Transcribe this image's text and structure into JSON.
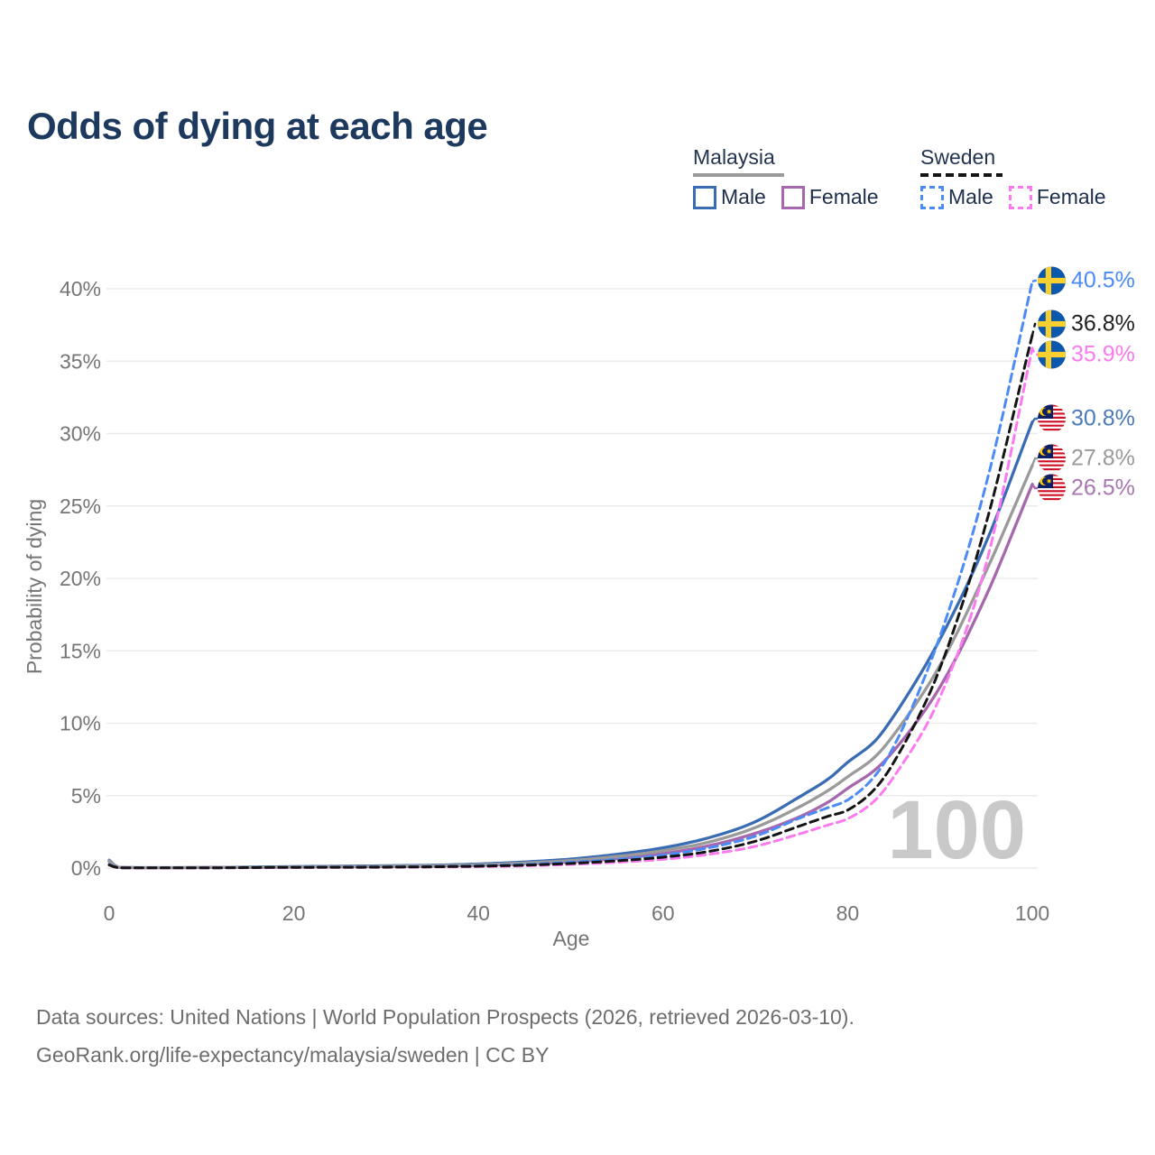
{
  "title": "Odds of dying at each age",
  "legend": {
    "groups": [
      {
        "country": "Malaysia",
        "style": "solid",
        "items": [
          {
            "label": "Male"
          },
          {
            "label": "Female"
          }
        ]
      },
      {
        "country": "Sweden",
        "style": "dashed",
        "items": [
          {
            "label": "Male"
          },
          {
            "label": "Female"
          }
        ]
      }
    ]
  },
  "footer": {
    "line1": "Data sources: United Nations | World Population Prospects (2026, retrieved 2026-03-10).",
    "line2": "GeoRank.org/life-expectancy/malaysia/sweden | CC BY"
  },
  "chart_data": {
    "type": "line",
    "title": "Odds of dying at each age",
    "xlabel": "Age",
    "ylabel": "Probability of dying",
    "xlim": [
      0,
      100
    ],
    "ylim": [
      0,
      40
    ],
    "x_ticks": [
      "0",
      "20",
      "40",
      "60",
      "80",
      "100"
    ],
    "y_ticks": [
      "0%",
      "5%",
      "10%",
      "15%",
      "20%",
      "25%",
      "30%",
      "35%",
      "40%"
    ],
    "grid": "horizontal",
    "legend_position": "top-right",
    "age_counter": "100",
    "units": "percent probability of dying at each age",
    "ages": [
      0,
      1,
      5,
      10,
      15,
      20,
      25,
      30,
      35,
      40,
      45,
      50,
      55,
      60,
      65,
      70,
      75,
      78,
      80,
      83,
      85,
      90,
      95,
      100
    ],
    "series": [
      {
        "key": "malaysia-male",
        "name": "Malaysia Male",
        "country": "Malaysia",
        "sex": "Male",
        "flag": "malaysia",
        "color": "#3a6cb4",
        "label_color": "#4a7ab9",
        "dashed": false,
        "end_value": 30.8,
        "end_label": "30.8%",
        "values": [
          0.55,
          0.05,
          0.03,
          0.04,
          0.07,
          0.1,
          0.13,
          0.16,
          0.2,
          0.28,
          0.42,
          0.62,
          0.95,
          1.4,
          2.1,
          3.2,
          5.0,
          6.2,
          7.3,
          8.8,
          10.5,
          15.8,
          22.5,
          30.8
        ]
      },
      {
        "key": "malaysia-female",
        "name": "Malaysia Female",
        "country": "Malaysia",
        "sex": "Female",
        "flag": "malaysia",
        "color": "#a667ac",
        "label_color": "#a876b1",
        "dashed": false,
        "end_value": 26.5,
        "end_label": "26.5%",
        "values": [
          0.45,
          0.04,
          0.02,
          0.03,
          0.04,
          0.06,
          0.08,
          0.1,
          0.13,
          0.19,
          0.28,
          0.43,
          0.65,
          1.0,
          1.55,
          2.4,
          3.6,
          4.6,
          5.5,
          6.8,
          8.1,
          12.5,
          18.8,
          26.5
        ]
      },
      {
        "key": "malaysia-both",
        "name": "Malaysia (both sexes)",
        "country": "Malaysia",
        "sex": "Both",
        "flag": "malaysia",
        "color": "#9a9a9a",
        "label_color": "#9a9a9a",
        "dashed": false,
        "end_value": 27.8,
        "end_label": "27.8%",
        "values": [
          0.5,
          0.045,
          0.025,
          0.035,
          0.055,
          0.08,
          0.1,
          0.13,
          0.17,
          0.23,
          0.35,
          0.52,
          0.8,
          1.2,
          1.8,
          2.8,
          4.3,
          5.4,
          6.3,
          7.7,
          9.2,
          14.0,
          20.5,
          27.8
        ]
      },
      {
        "key": "sweden-male",
        "name": "Sweden Male",
        "country": "Sweden",
        "sex": "Male",
        "flag": "sweden",
        "color": "#4c8bf5",
        "label_color": "#4c8bf5",
        "dashed": true,
        "end_value": 40.5,
        "end_label": "40.5%",
        "values": [
          0.25,
          0.02,
          0.01,
          0.015,
          0.04,
          0.06,
          0.07,
          0.08,
          0.11,
          0.16,
          0.25,
          0.4,
          0.6,
          0.9,
          1.4,
          2.2,
          3.5,
          4.2,
          4.7,
          6.4,
          8.4,
          16.0,
          26.5,
          40.5
        ]
      },
      {
        "key": "sweden-female",
        "name": "Sweden Female",
        "country": "Sweden",
        "sex": "Female",
        "flag": "sweden",
        "color": "#fb7af0",
        "label_color": "#fb7af0",
        "dashed": true,
        "end_value": 35.9,
        "end_label": "35.9%",
        "values": [
          0.2,
          0.015,
          0.008,
          0.01,
          0.02,
          0.03,
          0.04,
          0.05,
          0.07,
          0.1,
          0.15,
          0.25,
          0.4,
          0.6,
          0.95,
          1.5,
          2.4,
          3.0,
          3.4,
          4.7,
          6.3,
          11.8,
          21.0,
          35.9
        ]
      },
      {
        "key": "sweden-both",
        "name": "Sweden (both sexes)",
        "country": "Sweden",
        "sex": "Both",
        "flag": "sweden",
        "color": "#141414",
        "label_color": "#1f1f1f",
        "dashed": true,
        "end_value": 36.8,
        "end_label": "36.8%",
        "values": [
          0.22,
          0.018,
          0.01,
          0.013,
          0.03,
          0.05,
          0.055,
          0.065,
          0.09,
          0.13,
          0.2,
          0.32,
          0.5,
          0.75,
          1.15,
          1.85,
          2.95,
          3.6,
          4.0,
          5.5,
          7.3,
          13.8,
          23.8,
          36.8
        ]
      }
    ]
  }
}
